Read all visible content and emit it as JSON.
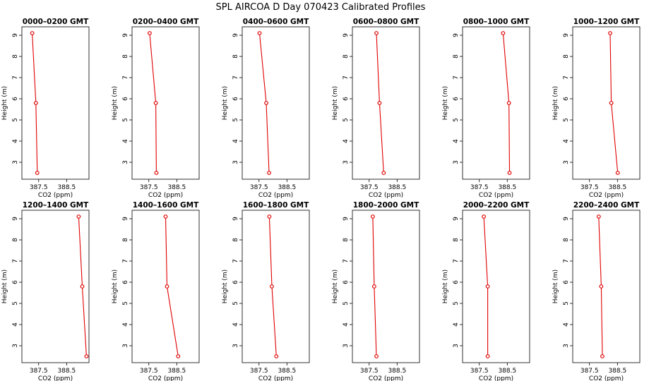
{
  "figure_title": "SPL AIRCOA D  Day 070423  Calibrated Profiles",
  "colors": {
    "series": "#e00000",
    "axis": "#000000",
    "background": "#ffffff"
  },
  "chart_data": {
    "type": "line",
    "marker": "open-circle",
    "shared_axes": {
      "xlabel": "CO2 (ppm)",
      "ylabel": "Height (m)",
      "xlim": [
        386.9,
        389.3
      ],
      "ylim": [
        2.2,
        9.4
      ],
      "xticks": [
        387.5,
        388.5
      ],
      "xtick_labels": [
        "387.5",
        "388.5"
      ],
      "yticks": [
        3,
        4,
        5,
        6,
        7,
        8,
        9
      ],
      "ytick_labels": [
        "3",
        "4",
        "5",
        "6",
        "7",
        "8",
        "9"
      ]
    },
    "panels": [
      {
        "title": "0000–0200 GMT",
        "x": [
          387.27,
          387.4,
          387.45
        ],
        "y": [
          9.1,
          5.8,
          2.5
        ]
      },
      {
        "title": "0200–0400 GMT",
        "x": [
          387.53,
          387.75,
          387.77
        ],
        "y": [
          9.1,
          5.8,
          2.5
        ]
      },
      {
        "title": "0400–0600 GMT",
        "x": [
          387.52,
          387.76,
          387.86
        ],
        "y": [
          9.1,
          5.8,
          2.5
        ]
      },
      {
        "title": "0600–0800 GMT",
        "x": [
          387.76,
          387.87,
          388.02
        ],
        "y": [
          9.1,
          5.8,
          2.5
        ]
      },
      {
        "title": "0800–1000 GMT",
        "x": [
          388.35,
          388.56,
          388.58
        ],
        "y": [
          9.1,
          5.8,
          2.5
        ]
      },
      {
        "title": "1000–1200 GMT",
        "x": [
          388.24,
          388.28,
          388.51
        ],
        "y": [
          9.1,
          5.8,
          2.5
        ]
      },
      {
        "title": "1200–1400 GMT",
        "x": [
          388.93,
          389.06,
          389.21
        ],
        "y": [
          9.1,
          5.8,
          2.5
        ]
      },
      {
        "title": "1400–1600 GMT",
        "x": [
          388.1,
          388.15,
          388.55
        ],
        "y": [
          9.1,
          5.8,
          2.5
        ]
      },
      {
        "title": "1600–1800 GMT",
        "x": [
          387.87,
          387.96,
          388.12
        ],
        "y": [
          9.1,
          5.8,
          2.5
        ]
      },
      {
        "title": "1800–2000 GMT",
        "x": [
          387.63,
          387.68,
          387.76
        ],
        "y": [
          9.1,
          5.8,
          2.5
        ]
      },
      {
        "title": "2000–2200 GMT",
        "x": [
          387.66,
          387.8,
          387.8
        ],
        "y": [
          9.1,
          5.8,
          2.5
        ]
      },
      {
        "title": "2200–2400 GMT",
        "x": [
          387.83,
          387.92,
          387.96
        ],
        "y": [
          9.1,
          5.8,
          2.5
        ]
      }
    ]
  }
}
